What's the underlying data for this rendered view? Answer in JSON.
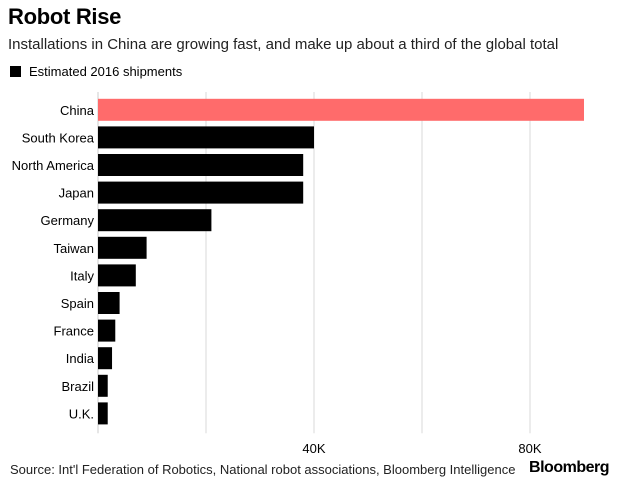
{
  "title": "Robot Rise",
  "subtitle": "Installations in China are growing fast, and make up about a third of the global total",
  "legend": {
    "label": "Estimated 2016 shipments",
    "color": "#000000"
  },
  "source": "Source: Int'l Federation of Robotics, National robot associations, Bloomberg Intelligence",
  "brand": "Bloomberg",
  "chart_data": {
    "type": "bar",
    "orientation": "horizontal",
    "categories": [
      "China",
      "South Korea",
      "North America",
      "Japan",
      "Germany",
      "Taiwan",
      "Italy",
      "Spain",
      "France",
      "India",
      "Brazil",
      "U.K."
    ],
    "series": [
      {
        "name": "Estimated 2016 shipments",
        "values": [
          90000,
          40000,
          38000,
          38000,
          21000,
          9000,
          7000,
          4000,
          3200,
          2600,
          1800,
          1800
        ]
      }
    ],
    "highlight": {
      "category": "China",
      "color": "#ff6b6b"
    },
    "bar_color": "#000000",
    "xlim": [
      0,
      95000
    ],
    "x_ticks": [
      {
        "value": 20000,
        "label": ""
      },
      {
        "value": 40000,
        "label": "40K"
      },
      {
        "value": 60000,
        "label": ""
      },
      {
        "value": 80000,
        "label": "80K"
      }
    ],
    "grid": true
  }
}
